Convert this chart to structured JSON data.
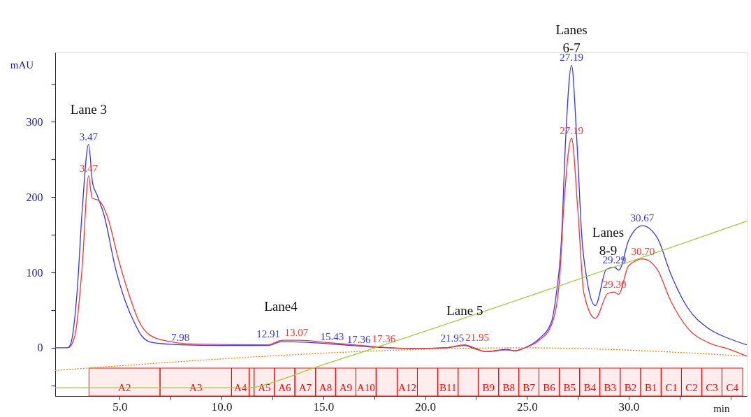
{
  "chart_data": {
    "type": "line",
    "xlabel": "min",
    "ylabel": "mAU",
    "xlim": [
      1.83,
      35.8
    ],
    "ylim": [
      -64,
      392
    ],
    "xticks": [
      {
        "value": 5,
        "label": "5.0"
      },
      {
        "value": 7.5,
        "label": null
      },
      {
        "value": 10,
        "label": "10.0"
      },
      {
        "value": 12.5,
        "label": null
      },
      {
        "value": 15,
        "label": "15.0"
      },
      {
        "value": 17.5,
        "label": null
      },
      {
        "value": 20,
        "label": "20.0"
      },
      {
        "value": 22.5,
        "label": null
      },
      {
        "value": 25,
        "label": "25.0"
      },
      {
        "value": 27.5,
        "label": null
      },
      {
        "value": 30,
        "label": "30.0"
      },
      {
        "value": 32.5,
        "label": null
      },
      {
        "value": 35,
        "label": null
      }
    ],
    "yticks": [
      {
        "value": -50,
        "label": null
      },
      0,
      {
        "value": 50,
        "label": null
      },
      100,
      {
        "value": 150,
        "label": null
      },
      200,
      {
        "value": 250,
        "label": null
      },
      300,
      {
        "value": 350,
        "label": null
      }
    ],
    "series": [
      {
        "line_style": "solid",
        "color": "#3333ff",
        "x": [
          1.83,
          2.44,
          2.6,
          2.9,
          3.16,
          3.47,
          3.67,
          3.9,
          4.25,
          4.76,
          5.27,
          5.78,
          6.1,
          6.6,
          7.98,
          10,
          12.3,
          12.91,
          13.5,
          15.43,
          16.9,
          17.36,
          19.6,
          21,
          21.95,
          22.4,
          23,
          24,
          24.4,
          24.9,
          25.6,
          26.2,
          26.4,
          26.7,
          26.9,
          27.19,
          27.45,
          27.7,
          27.95,
          28.36,
          28.9,
          29.29,
          29.52,
          30.0,
          30.67,
          31.4,
          32.05,
          32.9,
          33.9,
          34.95,
          35.8
        ],
        "values": [
          0,
          0,
          6,
          72,
          184,
          270,
          218,
          202,
          174,
          109,
          62,
          30,
          15,
          7,
          4,
          3,
          3,
          8,
          8,
          5,
          2,
          1,
          -1,
          0,
          3,
          -1,
          -5,
          -2,
          -4,
          0,
          12,
          34,
          63,
          146,
          276,
          375,
          276,
          146,
          90,
          56,
          104,
          107,
          103,
          143,
          162,
          146,
          99,
          53,
          26,
          12,
          4
        ]
      },
      {
        "line_style": "solid",
        "color": "#ff3333",
        "x": [
          2.5,
          2.8,
          3.16,
          3.47,
          3.64,
          4.0,
          4.4,
          4.93,
          5.44,
          5.95,
          6.47,
          7.3,
          8.7,
          12.3,
          12.8,
          13.07,
          13.8,
          15.2,
          16.9,
          17.36,
          19.6,
          21,
          21.95,
          22.4,
          23,
          24,
          24.4,
          24.9,
          25.6,
          26.2,
          26.6,
          26.8,
          27.19,
          27.5,
          27.8,
          28.36,
          28.97,
          29.3,
          29.5,
          30.0,
          30.7,
          31.4,
          32.05,
          32.9,
          33.9,
          34.95,
          35.8
        ],
        "values": [
          0,
          16,
          109,
          228,
          199,
          195,
          174,
          118,
          72,
          35,
          17,
          9,
          5,
          4,
          9,
          10,
          10,
          7,
          3,
          2,
          -1,
          0,
          4,
          0,
          -5,
          -3,
          -4,
          0,
          10,
          30,
          90,
          183,
          278,
          183,
          72,
          39,
          72,
          74,
          71,
          109,
          118,
          104,
          63,
          26,
          7,
          -2,
          -11
        ]
      },
      {
        "line_style": "solid",
        "color": "#99cc33",
        "x": [
          1.83,
          11.4,
          12.5,
          14.5,
          17.55,
          35.8
        ],
        "values": [
          -53,
          -53,
          -46,
          -27,
          0,
          168
        ]
      },
      {
        "color": "#ff8000",
        "line_style": "dotted",
        "x": [
          1.83,
          24.9,
          35.8
        ],
        "values": [
          -30,
          0,
          -11
        ]
      }
    ],
    "bands": [
      {
        "axis": "x",
        "from": 3.49,
        "to": 6.98,
        "label": "A2",
        "color": "#ff0000"
      },
      {
        "axis": "x",
        "from": 6.98,
        "to": 10.49,
        "label": "A3",
        "color": "#ff0000"
      },
      {
        "axis": "x",
        "from": 10.49,
        "to": 11.36,
        "label": "A4",
        "color": "#ff0000"
      },
      {
        "axis": "x",
        "from": 11.36,
        "to": 11.6,
        "label": null,
        "color": "#ff0000"
      },
      {
        "axis": "x",
        "from": 11.6,
        "to": 12.6,
        "label": "A5",
        "color": "#ff0000"
      },
      {
        "axis": "x",
        "from": 12.6,
        "to": 13.6,
        "label": "A6",
        "color": "#ff0000"
      },
      {
        "axis": "x",
        "from": 13.6,
        "to": 14.62,
        "label": "A7",
        "color": "#ff0000"
      },
      {
        "axis": "x",
        "from": 14.62,
        "to": 15.6,
        "label": "A8",
        "color": "#ff0000"
      },
      {
        "axis": "x",
        "from": 15.6,
        "to": 16.6,
        "label": "A9",
        "color": "#ff0000"
      },
      {
        "axis": "x",
        "from": 16.6,
        "to": 17.59,
        "label": "A10",
        "color": "#ff0000"
      },
      {
        "axis": "x",
        "from": 17.59,
        "to": 18.63,
        "label": null,
        "color": "#ff0000"
      },
      {
        "axis": "x",
        "from": 18.63,
        "to": 19.62,
        "label": "A12",
        "color": "#ff0000"
      },
      {
        "axis": "x",
        "from": 19.62,
        "to": 20.62,
        "label": null,
        "color": "#ff0000"
      },
      {
        "axis": "x",
        "from": 20.62,
        "to": 21.62,
        "label": "B11",
        "color": "#ff0000"
      },
      {
        "axis": "x",
        "from": 21.62,
        "to": 22.61,
        "label": null,
        "color": "#ff0000"
      },
      {
        "axis": "x",
        "from": 22.61,
        "to": 23.61,
        "label": "B9",
        "color": "#ff0000"
      },
      {
        "axis": "x",
        "from": 23.61,
        "to": 24.6,
        "label": "B8",
        "color": "#ff0000"
      },
      {
        "axis": "x",
        "from": 24.6,
        "to": 25.59,
        "label": "B7",
        "color": "#ff0000"
      },
      {
        "axis": "x",
        "from": 25.59,
        "to": 26.59,
        "label": "B6",
        "color": "#ff0000"
      },
      {
        "axis": "x",
        "from": 26.59,
        "to": 27.59,
        "label": "B5",
        "color": "#ff0000"
      },
      {
        "axis": "x",
        "from": 27.59,
        "to": 28.58,
        "label": "B4",
        "color": "#ff0000"
      },
      {
        "axis": "x",
        "from": 28.58,
        "to": 29.58,
        "label": "B3",
        "color": "#ff0000"
      },
      {
        "axis": "x",
        "from": 29.58,
        "to": 30.59,
        "label": "B2",
        "color": "#ff0000"
      },
      {
        "axis": "x",
        "from": 30.59,
        "to": 31.59,
        "label": "B1",
        "color": "#ff0000"
      },
      {
        "axis": "x",
        "from": 31.59,
        "to": 32.59,
        "label": "C1",
        "color": "#ff0000"
      },
      {
        "axis": "x",
        "from": 32.59,
        "to": 33.59,
        "label": "C2",
        "color": "#ff0000"
      },
      {
        "axis": "x",
        "from": 33.59,
        "to": 34.58,
        "label": "C3",
        "color": "#ff0000"
      },
      {
        "axis": "x",
        "from": 34.58,
        "to": 35.6,
        "label": "C4",
        "color": "#ff0000"
      }
    ],
    "annotations": [
      {
        "text": "Lane 3",
        "x": 3.47,
        "y": 270
      },
      {
        "text": "3.47",
        "x": 3.47,
        "y": 270
      },
      {
        "text": "3.47",
        "x": 3.47,
        "y": 228
      },
      {
        "text": "7.98",
        "x": 7.98,
        "y": 4
      },
      {
        "text": "Lane4",
        "x": 12.91,
        "y": 8
      },
      {
        "text": "12.91",
        "x": 12.91,
        "y": 8
      },
      {
        "text": "13.07",
        "x": 13.07,
        "y": 10
      },
      {
        "text": "15.43",
        "x": 15.43,
        "y": 5
      },
      {
        "text": "17.36",
        "x": 17.36,
        "y": 1
      },
      {
        "text": "17.36",
        "x": 17.36,
        "y": 2
      },
      {
        "text": "Lane 5",
        "x": 21.95,
        "y": 3
      },
      {
        "text": "21.95",
        "x": 21.95,
        "y": 3
      },
      {
        "text": "21.95",
        "x": 21.95,
        "y": 4
      },
      {
        "text": "Lanes\n6-7",
        "x": 27.19,
        "y": 375
      },
      {
        "text": "27.19",
        "x": 27.19,
        "y": 375
      },
      {
        "text": "27.19",
        "x": 27.19,
        "y": 278
      },
      {
        "text": "Lanes\n8-9",
        "x": 29.29,
        "y": 107
      },
      {
        "text": "29.29",
        "x": 29.29,
        "y": 107
      },
      {
        "text": "29.30",
        "x": 29.3,
        "y": 74
      },
      {
        "text": "30.67",
        "x": 30.67,
        "y": 162
      },
      {
        "text": "30.70",
        "x": 30.7,
        "y": 118
      }
    ]
  }
}
